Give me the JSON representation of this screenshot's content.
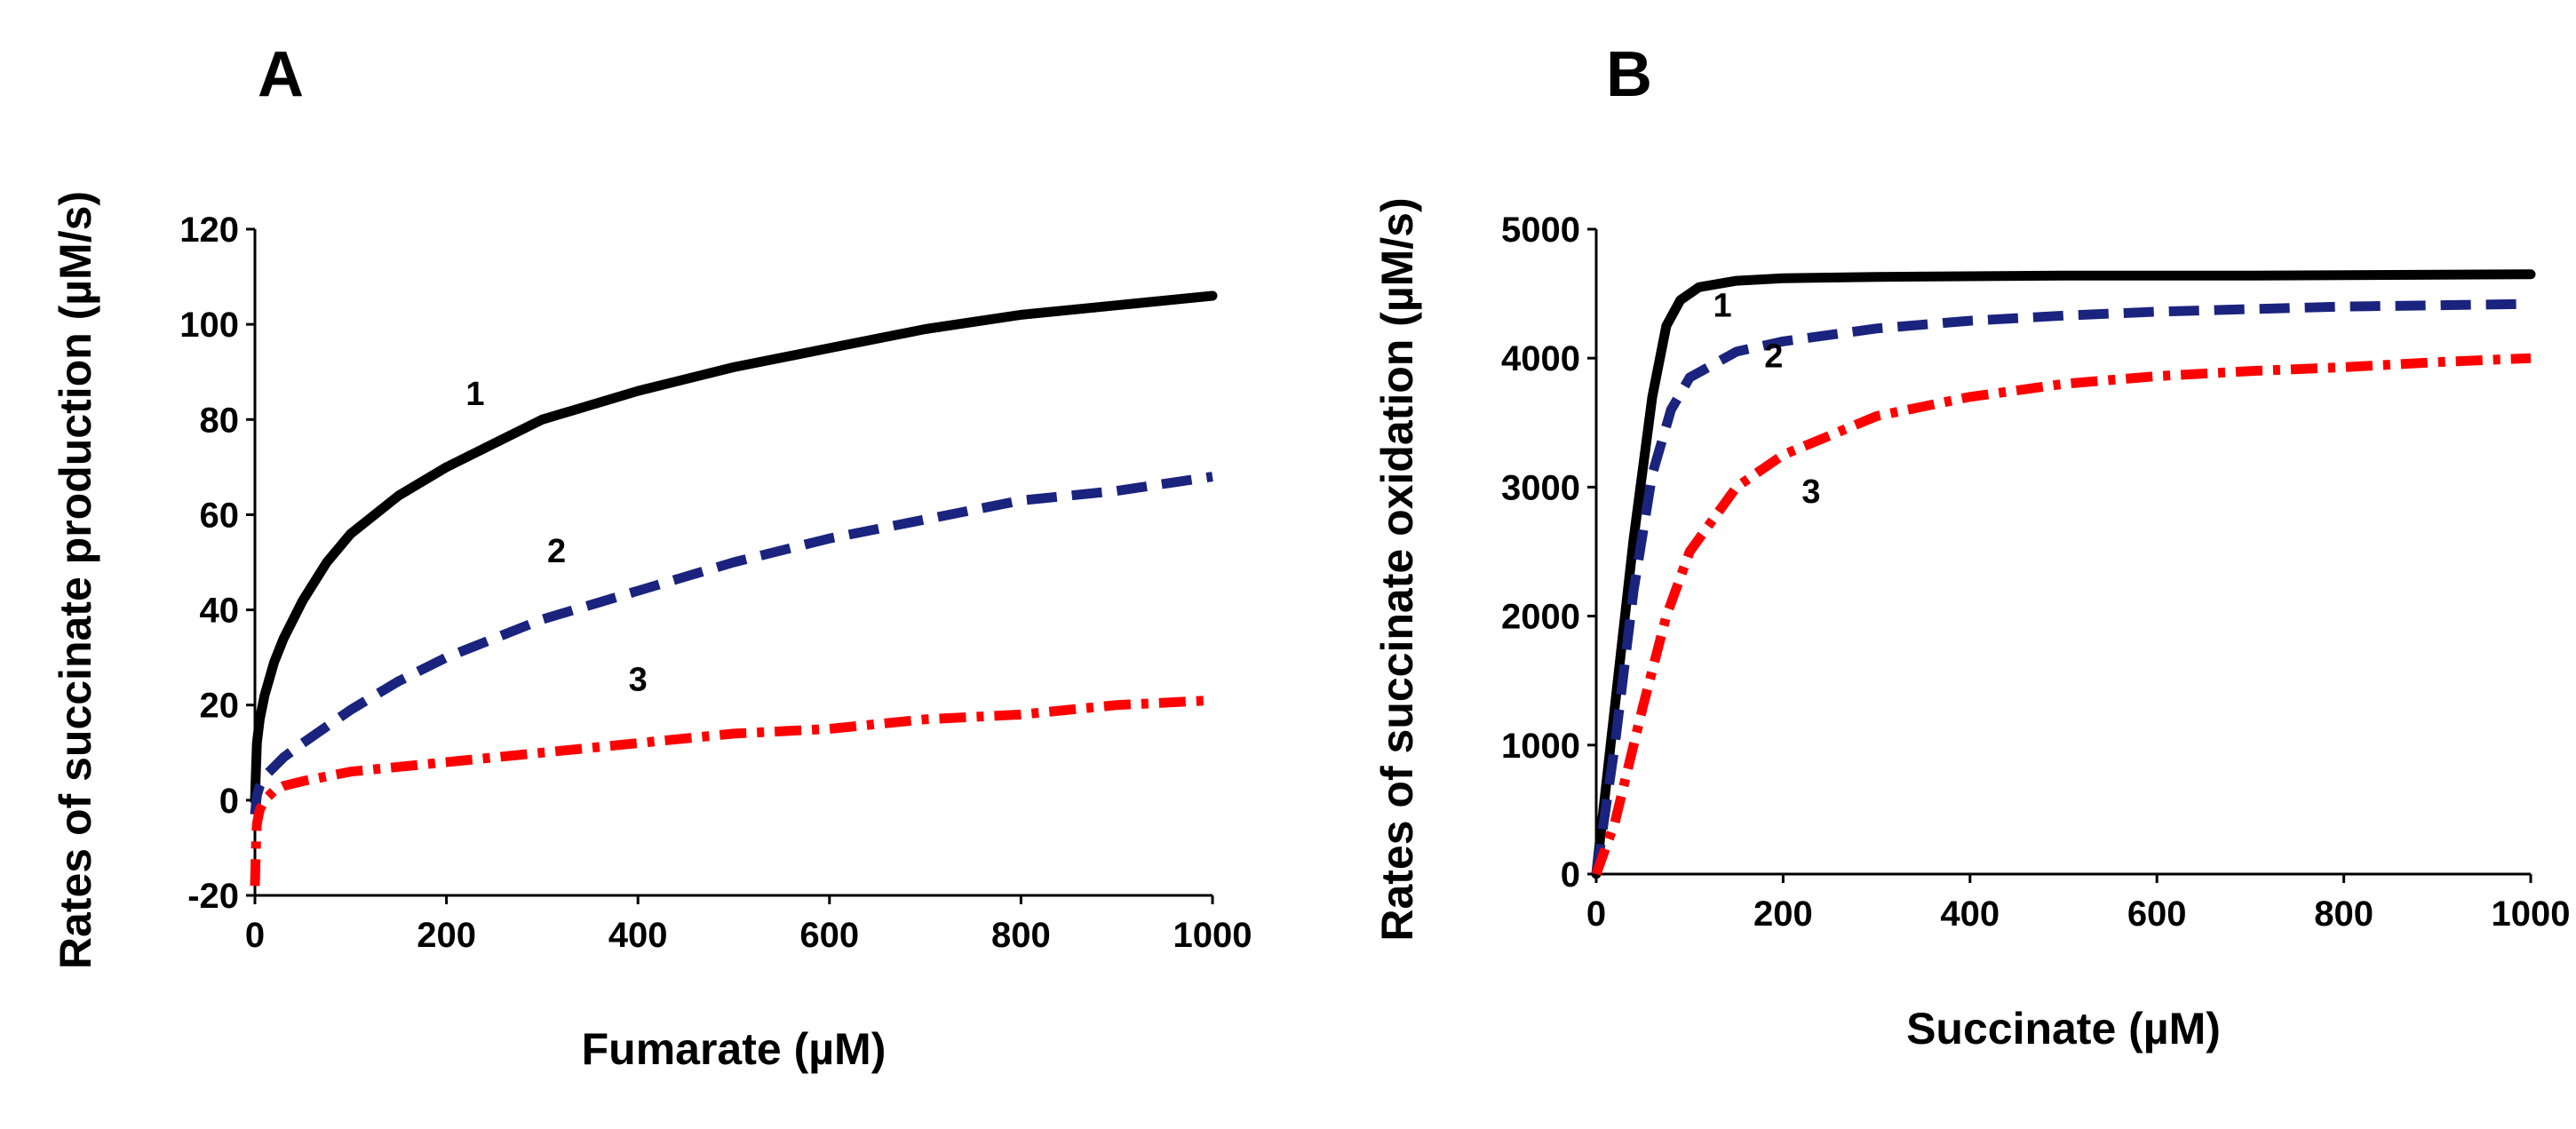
{
  "chart_data": [
    {
      "type": "line",
      "panel": "A",
      "title": "",
      "xlabel": "Fumarate (µM)",
      "ylabel": "Rates of succinate production (µM/s)",
      "xlim": [
        0,
        1000
      ],
      "ylim": [
        -20,
        120
      ],
      "xticks": [
        "0",
        "200",
        "400",
        "600",
        "800",
        "1000"
      ],
      "yticks": [
        "-20",
        "0",
        "20",
        "40",
        "60",
        "80",
        "100",
        "120"
      ],
      "grid": false,
      "legend": "none",
      "series": [
        {
          "name": "1",
          "label": "1",
          "color": "#000000",
          "style": "solid",
          "x": [
            0,
            2,
            5,
            10,
            20,
            30,
            50,
            75,
            100,
            150,
            200,
            250,
            300,
            400,
            500,
            600,
            700,
            800,
            900,
            1000
          ],
          "y": [
            0,
            12,
            17,
            22,
            29,
            34,
            42,
            50,
            56,
            64,
            70,
            75,
            80,
            86,
            91,
            95,
            99,
            102,
            104,
            106
          ],
          "label_at": [
            230,
            83
          ]
        },
        {
          "name": "2",
          "label": "2",
          "color": "#1a237e",
          "style": "dashed",
          "x": [
            0,
            2,
            5,
            10,
            20,
            30,
            50,
            100,
            150,
            200,
            300,
            400,
            500,
            600,
            700,
            800,
            900,
            1000
          ],
          "y": [
            -3,
            1,
            3,
            5,
            7,
            9,
            12,
            19,
            25,
            30,
            38,
            44,
            50,
            55,
            59,
            63,
            65,
            68
          ],
          "label_at": [
            315,
            50
          ]
        },
        {
          "name": "3",
          "label": "3",
          "color": "#ff0000",
          "style": "dashdot",
          "x": [
            0,
            1,
            2,
            5,
            10,
            20,
            30,
            50,
            100,
            200,
            300,
            400,
            500,
            600,
            700,
            800,
            900,
            1000
          ],
          "y": [
            -18,
            -10,
            -5,
            -2,
            0,
            2,
            3,
            4,
            6,
            8,
            10,
            12,
            14,
            15,
            17,
            18,
            20,
            21
          ],
          "label_at": [
            400,
            23
          ]
        }
      ]
    },
    {
      "type": "line",
      "panel": "B",
      "title": "",
      "xlabel": "Succinate (µM)",
      "ylabel": "Rates of succinate oxidation (µM/s)",
      "xlim": [
        0,
        1000
      ],
      "ylim": [
        0,
        5000
      ],
      "xticks": [
        "0",
        "200",
        "400",
        "600",
        "800",
        "1000"
      ],
      "yticks": [
        "0",
        "1000",
        "2000",
        "3000",
        "4000",
        "5000"
      ],
      "grid": false,
      "legend": "none",
      "series": [
        {
          "name": "1",
          "label": "1",
          "color": "#000000",
          "style": "solid",
          "x": [
            0,
            20,
            40,
            60,
            75,
            90,
            110,
            150,
            200,
            300,
            500,
            700,
            1000
          ],
          "y": [
            0,
            1300,
            2600,
            3700,
            4250,
            4450,
            4550,
            4600,
            4620,
            4630,
            4640,
            4640,
            4650
          ],
          "label_at": [
            135,
            4320
          ]
        },
        {
          "name": "2",
          "label": "2",
          "color": "#1a237e",
          "style": "dashed",
          "x": [
            0,
            20,
            40,
            60,
            80,
            100,
            150,
            200,
            300,
            400,
            500,
            600,
            700,
            800,
            900,
            1000
          ],
          "y": [
            0,
            1000,
            2200,
            3100,
            3600,
            3850,
            4050,
            4130,
            4230,
            4290,
            4330,
            4360,
            4380,
            4400,
            4410,
            4420
          ],
          "label_at": [
            190,
            3930
          ]
        },
        {
          "name": "3",
          "label": "3",
          "color": "#ff0000",
          "style": "dashdot",
          "x": [
            0,
            20,
            50,
            75,
            100,
            150,
            200,
            300,
            400,
            500,
            600,
            700,
            800,
            900,
            1000
          ],
          "y": [
            0,
            400,
            1300,
            2000,
            2500,
            3000,
            3250,
            3550,
            3700,
            3800,
            3860,
            3900,
            3930,
            3970,
            4000
          ],
          "label_at": [
            230,
            2880
          ]
        }
      ]
    }
  ]
}
